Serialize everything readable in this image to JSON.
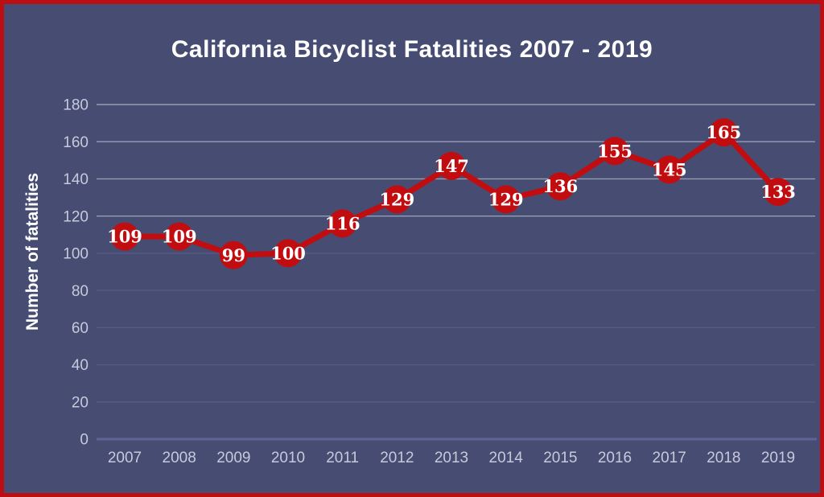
{
  "chart_data": {
    "type": "line",
    "title": "California Bicyclist Fatalities 2007 - 2019",
    "xlabel": "",
    "ylabel": "Number of fatalities",
    "categories": [
      "2007",
      "2008",
      "2009",
      "2010",
      "2011",
      "2012",
      "2013",
      "2014",
      "2015",
      "2016",
      "2017",
      "2018",
      "2019"
    ],
    "values": [
      109,
      109,
      99,
      100,
      116,
      129,
      147,
      129,
      136,
      155,
      145,
      165,
      133
    ],
    "ylim": [
      0,
      180
    ],
    "ytick_step": 20,
    "grid": true,
    "legend": false,
    "marker_labels_visible": true
  },
  "colors": {
    "background": "#464c72",
    "border": "#bb0f14",
    "line": "#c20d10",
    "marker": "#c20d10",
    "marker_label": "#ffffff",
    "title": "#ffffff",
    "axis_label": "#ffffff",
    "tick_label": "#c7cadb",
    "gridline_bright": "#989db2",
    "gridline_subtle": "#565c81",
    "axis_line": "#5d6594"
  }
}
